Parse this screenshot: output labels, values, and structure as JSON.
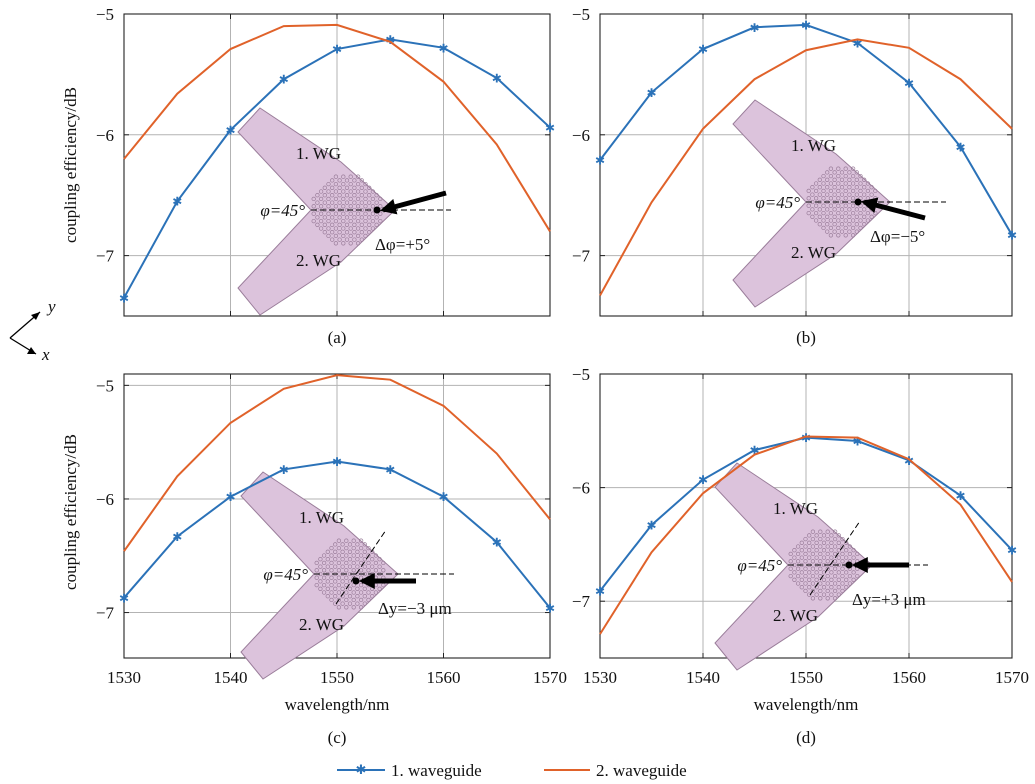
{
  "chart_data": [
    {
      "type": "line",
      "panel_label": "(a)",
      "x": [
        1530,
        1535,
        1540,
        1545,
        1550,
        1555,
        1560,
        1565,
        1570
      ],
      "xlim": [
        1530,
        1570
      ],
      "ylim": [
        -7.5,
        -5
      ],
      "xticks": [
        1530,
        1540,
        1550,
        1560,
        1570
      ],
      "xtick_labels_shown": false,
      "yticks": [
        -7,
        -6,
        -5
      ],
      "ytick_labels": [
        "−7",
        "−6",
        "−5"
      ],
      "ylabel": "coupling efficiency/dB",
      "xlabel": "",
      "grid": true,
      "series": [
        {
          "name": "1. waveguide",
          "color": "#2b72b8",
          "marker": "star",
          "values": [
            -7.35,
            -6.55,
            -5.96,
            -5.54,
            -5.29,
            -5.21,
            -5.28,
            -5.53,
            -5.94
          ]
        },
        {
          "name": "2. waveguide",
          "color": "#e0622a",
          "marker": "none",
          "values": [
            -6.2,
            -5.66,
            -5.29,
            -5.1,
            -5.09,
            -5.23,
            -5.56,
            -6.08,
            -6.8
          ]
        }
      ],
      "inset": {
        "wg1": "1. WG",
        "wg2": "2. WG",
        "phi": "φ=45°",
        "delta": "Δφ=+5°"
      }
    },
    {
      "type": "line",
      "panel_label": "(b)",
      "x": [
        1530,
        1535,
        1540,
        1545,
        1550,
        1555,
        1560,
        1565,
        1570
      ],
      "xlim": [
        1530,
        1570
      ],
      "ylim": [
        -7.5,
        -5
      ],
      "xticks": [
        1530,
        1540,
        1550,
        1560,
        1570
      ],
      "xtick_labels_shown": false,
      "yticks": [
        -7,
        -6,
        -5
      ],
      "ytick_labels": [
        "−7",
        "−6",
        "−5"
      ],
      "ylabel": "",
      "xlabel": "",
      "grid": true,
      "series": [
        {
          "name": "1. waveguide",
          "color": "#2b72b8",
          "marker": "star",
          "values": [
            -6.21,
            -5.65,
            -5.29,
            -5.11,
            -5.09,
            -5.24,
            -5.57,
            -6.1,
            -6.83
          ]
        },
        {
          "name": "2. waveguide",
          "color": "#e0622a",
          "marker": "none",
          "values": [
            -7.33,
            -6.56,
            -5.95,
            -5.54,
            -5.3,
            -5.21,
            -5.28,
            -5.54,
            -5.95
          ]
        }
      ],
      "inset": {
        "wg1": "1. WG",
        "wg2": "2. WG",
        "phi": "φ=45°",
        "delta": "Δφ=−5°"
      }
    },
    {
      "type": "line",
      "panel_label": "(c)",
      "x": [
        1530,
        1535,
        1540,
        1545,
        1550,
        1555,
        1560,
        1565,
        1570
      ],
      "xlim": [
        1530,
        1570
      ],
      "ylim": [
        -7.4,
        -4.9
      ],
      "xticks": [
        1530,
        1540,
        1550,
        1560,
        1570
      ],
      "xtick_labels": [
        "1530",
        "1540",
        "1550",
        "1560",
        "1570"
      ],
      "xtick_labels_shown": true,
      "yticks": [
        -7,
        -6,
        -5
      ],
      "ytick_labels": [
        "−7",
        "−6",
        "−5"
      ],
      "ylabel": "coupling efficiency/dB",
      "xlabel": "wavelength/nm",
      "grid": true,
      "series": [
        {
          "name": "1. waveguide",
          "color": "#2b72b8",
          "marker": "star",
          "values": [
            -6.87,
            -6.33,
            -5.98,
            -5.74,
            -5.67,
            -5.74,
            -5.98,
            -6.38,
            -6.96
          ]
        },
        {
          "name": "2. waveguide",
          "color": "#e0622a",
          "marker": "none",
          "values": [
            -6.46,
            -5.8,
            -5.33,
            -5.03,
            -4.91,
            -4.95,
            -5.18,
            -5.6,
            -6.18
          ]
        }
      ],
      "inset": {
        "wg1": "1. WG",
        "wg2": "2. WG",
        "phi": "φ=45°",
        "delta": "Δy=−3 μm"
      }
    },
    {
      "type": "line",
      "panel_label": "(d)",
      "x": [
        1530,
        1535,
        1540,
        1545,
        1550,
        1555,
        1560,
        1565,
        1570
      ],
      "xlim": [
        1530,
        1570
      ],
      "ylim": [
        -7.5,
        -5
      ],
      "xticks": [
        1530,
        1540,
        1550,
        1560,
        1570
      ],
      "xtick_labels": [
        "1530",
        "1540",
        "1550",
        "1560",
        "1570"
      ],
      "xtick_labels_shown": true,
      "yticks": [
        -7,
        -6,
        -5
      ],
      "ytick_labels": [
        "−7",
        "−6",
        "−5"
      ],
      "ylabel": "",
      "xlabel": "wavelength/nm",
      "grid": true,
      "series": [
        {
          "name": "1. waveguide",
          "color": "#2b72b8",
          "marker": "star",
          "values": [
            -6.91,
            -6.33,
            -5.93,
            -5.67,
            -5.56,
            -5.59,
            -5.76,
            -6.07,
            -6.55
          ]
        },
        {
          "name": "2. waveguide",
          "color": "#e0622a",
          "marker": "none",
          "values": [
            -7.29,
            -6.57,
            -6.05,
            -5.71,
            -5.55,
            -5.56,
            -5.75,
            -6.15,
            -6.83
          ]
        }
      ],
      "inset": {
        "wg1": "1. WG",
        "wg2": "2. WG",
        "phi": "φ=45°",
        "delta": "Δy=+3 μm"
      }
    }
  ],
  "coordinate_axes": {
    "y": "y",
    "x": "x"
  },
  "legend": {
    "placement": "bottom-center",
    "items": [
      {
        "label": "1. waveguide",
        "color": "#2b72b8",
        "marker": "star"
      },
      {
        "label": "2. waveguide",
        "color": "#e0622a",
        "marker": "none"
      }
    ]
  },
  "colors": {
    "inset_fill": "#dcc3dc",
    "inset_stroke": "#9a7d9a",
    "grid": "#b3b3b3"
  }
}
